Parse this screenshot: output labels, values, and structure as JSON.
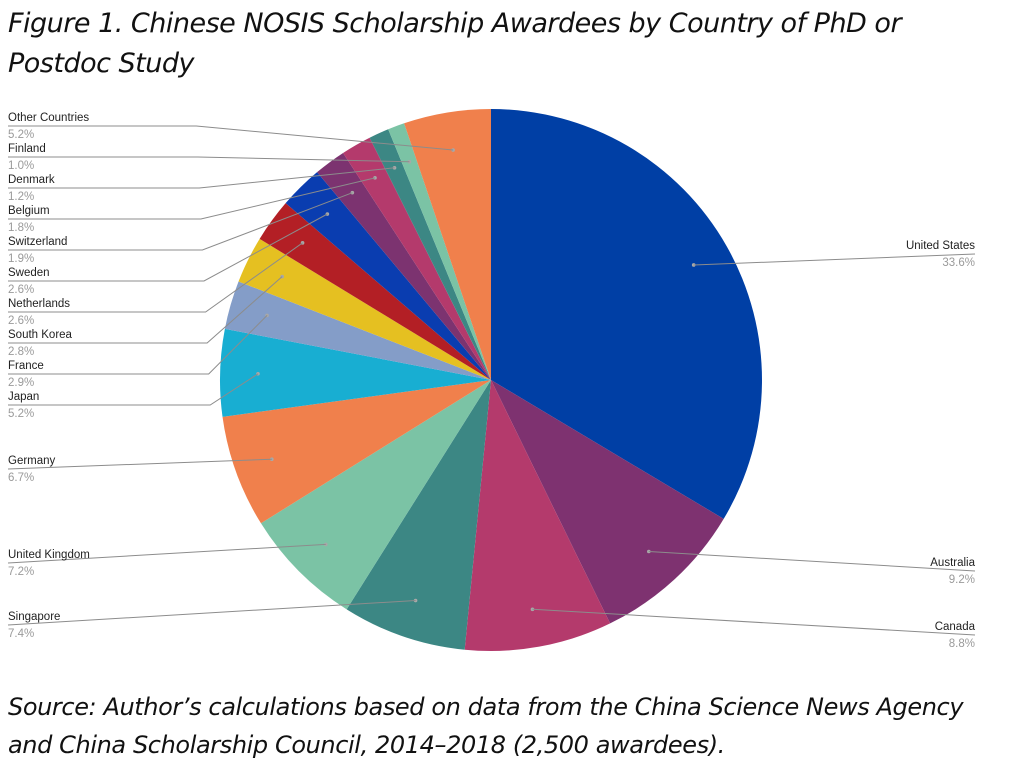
{
  "figure": {
    "title": "Figure 1. Chinese NOSIS Scholarship Awardees by Country of PhD or Postdoc Study",
    "source": "Source: Author’s calculations based on data from the China Science News Agency and China Scholarship Council, 2014–2018 (2,500 awardees)."
  },
  "chart_data": {
    "type": "pie",
    "start": "12 o'clock, clockwise",
    "slices": [
      {
        "label": "United States",
        "value": 33.6,
        "display": "33.6%",
        "color": "#003FA5",
        "side": "right"
      },
      {
        "label": "Australia",
        "value": 9.2,
        "display": "9.2%",
        "color": "#7E3270",
        "side": "right"
      },
      {
        "label": "Canada",
        "value": 8.8,
        "display": "8.8%",
        "color": "#B43A6C",
        "side": "right"
      },
      {
        "label": "Singapore",
        "value": 7.4,
        "display": "7.4%",
        "color": "#3C8784",
        "side": "left"
      },
      {
        "label": "United Kingdom",
        "value": 7.2,
        "display": "7.2%",
        "color": "#7BC3A5",
        "side": "left"
      },
      {
        "label": "Germany",
        "value": 6.7,
        "display": "6.7%",
        "color": "#F0804C",
        "side": "left"
      },
      {
        "label": "Japan",
        "value": 5.2,
        "display": "5.2%",
        "color": "#18AED2",
        "side": "left"
      },
      {
        "label": "France",
        "value": 2.9,
        "display": "2.9%",
        "color": "#849DC8",
        "side": "left"
      },
      {
        "label": "South Korea",
        "value": 2.8,
        "display": "2.8%",
        "color": "#E5C021",
        "side": "left"
      },
      {
        "label": "Netherlands",
        "value": 2.6,
        "display": "2.6%",
        "color": "#B31F25",
        "side": "left"
      },
      {
        "label": "Sweden",
        "value": 2.6,
        "display": "2.6%",
        "color": "#0A3DB0",
        "side": "left"
      },
      {
        "label": "Switzerland",
        "value": 1.9,
        "display": "1.9%",
        "color": "#7C3370",
        "side": "left"
      },
      {
        "label": "Belgium",
        "value": 1.8,
        "display": "1.8%",
        "color": "#B43A6C",
        "side": "left"
      },
      {
        "label": "Denmark",
        "value": 1.2,
        "display": "1.2%",
        "color": "#3C8784",
        "side": "left"
      },
      {
        "label": "Finland",
        "value": 1.0,
        "display": "1.0%",
        "color": "#7BC3A5",
        "side": "left"
      },
      {
        "label": "Other Countries",
        "value": 5.2,
        "display": "5.2%",
        "color": "#F0804C",
        "side": "left"
      }
    ]
  }
}
